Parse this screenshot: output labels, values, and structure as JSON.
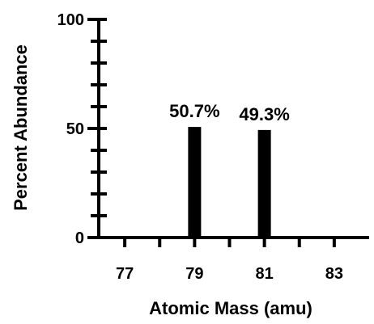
{
  "chart_data": {
    "type": "bar",
    "xlabel": "Atomic Mass (amu)",
    "ylabel": "Percent Abundance",
    "x_ticks": [
      77,
      79,
      81,
      83
    ],
    "y_ticks": [
      0,
      50,
      100
    ],
    "xlim": [
      76,
      84
    ],
    "ylim": [
      0,
      100
    ],
    "bars": [
      {
        "x": 79,
        "value": 50.7,
        "label": "50.7%"
      },
      {
        "x": 81,
        "value": 49.3,
        "label": "49.3%"
      }
    ],
    "colors": {
      "bar": "#000000",
      "axis": "#000000"
    }
  }
}
